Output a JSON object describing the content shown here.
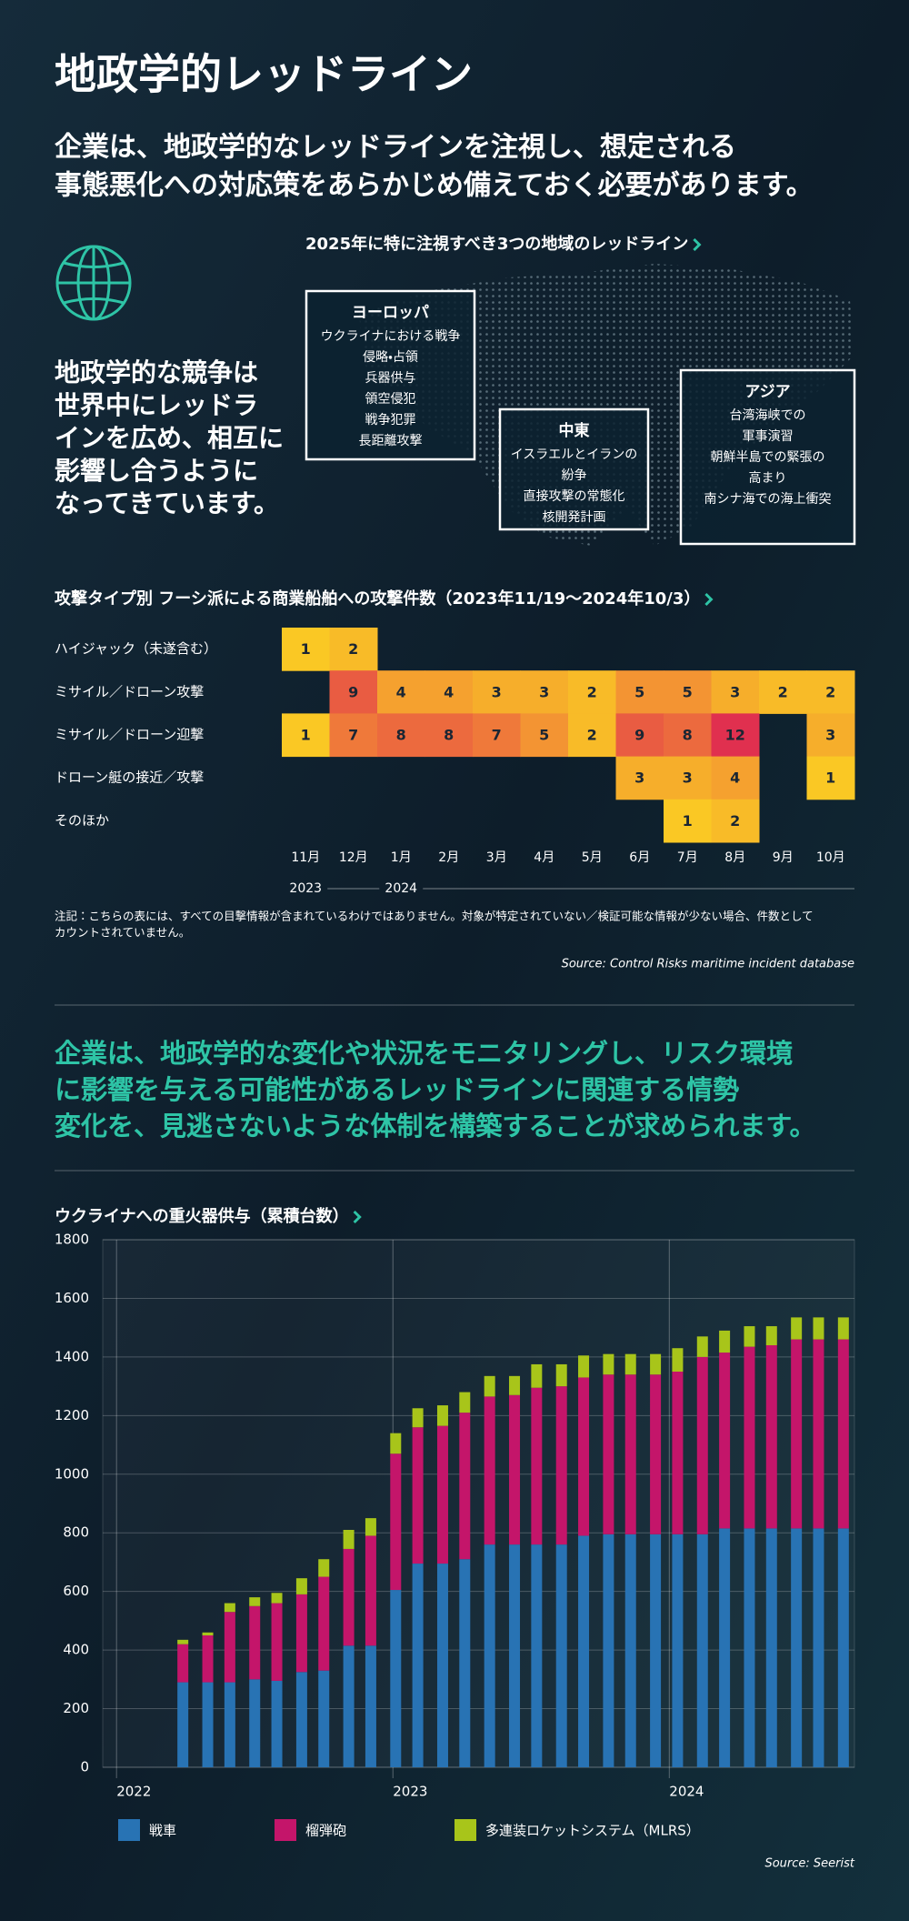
{
  "header": {
    "title": "地政学的レッドライン",
    "subtitle": [
      "企業は、地政学的なレッドラインを注視し、想定される",
      "事態悪化への対応策をあらかじめ備えておく必要があります。"
    ]
  },
  "intro": {
    "lines": [
      "地政学的な競争は",
      "世界中にレッドラ",
      "インを広め、相互に",
      "影響し合うように",
      "なってきています。"
    ]
  },
  "regions": {
    "title": "2025年に特に注視すべき3つの地域のレッドライン",
    "items": [
      {
        "name": "ヨーロッパ",
        "lines": [
          "ウクライナにおける戦争",
          "侵略・占領",
          "兵器供与",
          "領空侵犯",
          "戦争犯罪",
          "長距離攻撃"
        ]
      },
      {
        "name": "中東",
        "lines": [
          "イスラエルとイランの",
          "紛争",
          "直接攻撃の常態化",
          "核開発計画"
        ]
      },
      {
        "name": "アジア",
        "lines": [
          "台湾海峡での",
          "軍事演習",
          "朝鮮半島での緊張の",
          "高まり",
          "南シナ海での海上衝突"
        ]
      }
    ]
  },
  "message": {
    "lines": [
      "企業は、地政学的な変化や状況をモニタリングし、リスク環境",
      "に影響を与える可能性があるレッドラインに関連する情勢",
      "変化を、見逃さないような体制を構築することが求められます。"
    ]
  },
  "chart_data": [
    {
      "type": "heatmap",
      "title": "攻撃タイプ別 フーシ派による商業船舶への攻撃件数（2023年11/19〜2024年10/3）",
      "categories": [
        "11月",
        "12月",
        "1月",
        "2月",
        "3月",
        "4月",
        "5月",
        "6月",
        "7月",
        "8月",
        "9月",
        "10月"
      ],
      "year_labels": [
        "2023",
        null,
        "2024",
        null,
        null,
        null,
        null,
        null,
        null,
        null,
        null,
        null
      ],
      "color_scale": [
        "#fac824",
        "#f08038",
        "#e0304f"
      ],
      "series": [
        {
          "name": "ハイジャック（未遂含む）",
          "values": [
            1,
            2,
            null,
            null,
            null,
            null,
            null,
            null,
            null,
            null,
            null,
            null
          ]
        },
        {
          "name": "ミサイル／ドローン攻撃",
          "values": [
            null,
            9,
            4,
            4,
            3,
            3,
            2,
            5,
            5,
            3,
            2,
            2
          ]
        },
        {
          "name": "ミサイル／ドローン迎撃",
          "values": [
            1,
            7,
            8,
            8,
            7,
            5,
            2,
            9,
            8,
            12,
            null,
            3
          ]
        },
        {
          "name": "ドローン艇の接近／攻撃",
          "values": [
            null,
            null,
            null,
            null,
            null,
            null,
            null,
            3,
            3,
            4,
            null,
            1
          ]
        },
        {
          "name": "そのほか",
          "values": [
            null,
            null,
            null,
            null,
            null,
            null,
            null,
            null,
            1,
            2,
            null,
            null
          ]
        }
      ],
      "note": [
        "注記：こちらの表には、すべての目撃情報が含まれているわけではありません。対象が特定されていない／検証可能な情報が少ない場合、件数として",
        "カウントされていません。"
      ],
      "source": "Source: Control Risks maritime incident database"
    },
    {
      "type": "stacked-bar",
      "title": "ウクライナへの重火器供与（累積台数）",
      "x": [
        2022.24,
        2022.33,
        2022.41,
        2022.5,
        2022.58,
        2022.67,
        2022.75,
        2022.84,
        2022.92,
        2023.01,
        2023.09,
        2023.18,
        2023.26,
        2023.35,
        2023.44,
        2023.52,
        2023.61,
        2023.69,
        2023.78,
        2023.86,
        2023.95,
        2024.03,
        2024.12,
        2024.2,
        2024.29,
        2024.37,
        2024.46,
        2024.54,
        2024.63
      ],
      "xlim": [
        2021.95,
        2024.67
      ],
      "xticks": [
        2022,
        2023,
        2024
      ],
      "ylim": [
        0,
        1800
      ],
      "yticks": [
        0,
        200,
        400,
        600,
        800,
        1000,
        1200,
        1400,
        1600,
        1800
      ],
      "grid": true,
      "series": [
        {
          "name": "戦車",
          "color": "#2873b4",
          "values": [
            290,
            290,
            290,
            300,
            295,
            325,
            330,
            415,
            415,
            605,
            695,
            695,
            710,
            760,
            760,
            760,
            760,
            790,
            795,
            795,
            795,
            795,
            795,
            815,
            815,
            815,
            815,
            815,
            815
          ]
        },
        {
          "name": "榴弾砲",
          "color": "#c4156a",
          "values": [
            130,
            160,
            240,
            250,
            265,
            265,
            320,
            330,
            375,
            465,
            465,
            470,
            500,
            505,
            510,
            535,
            540,
            540,
            545,
            545,
            545,
            555,
            605,
            600,
            620,
            625,
            645,
            645,
            645
          ]
        },
        {
          "name": "多連装ロケットシステム（MLRS）",
          "color": "#a8c51a",
          "values": [
            15,
            10,
            30,
            30,
            35,
            55,
            60,
            65,
            60,
            70,
            65,
            70,
            70,
            70,
            65,
            80,
            75,
            75,
            70,
            70,
            70,
            80,
            70,
            75,
            70,
            65,
            75,
            75,
            75
          ]
        }
      ],
      "source": "Source: Seerist"
    }
  ]
}
